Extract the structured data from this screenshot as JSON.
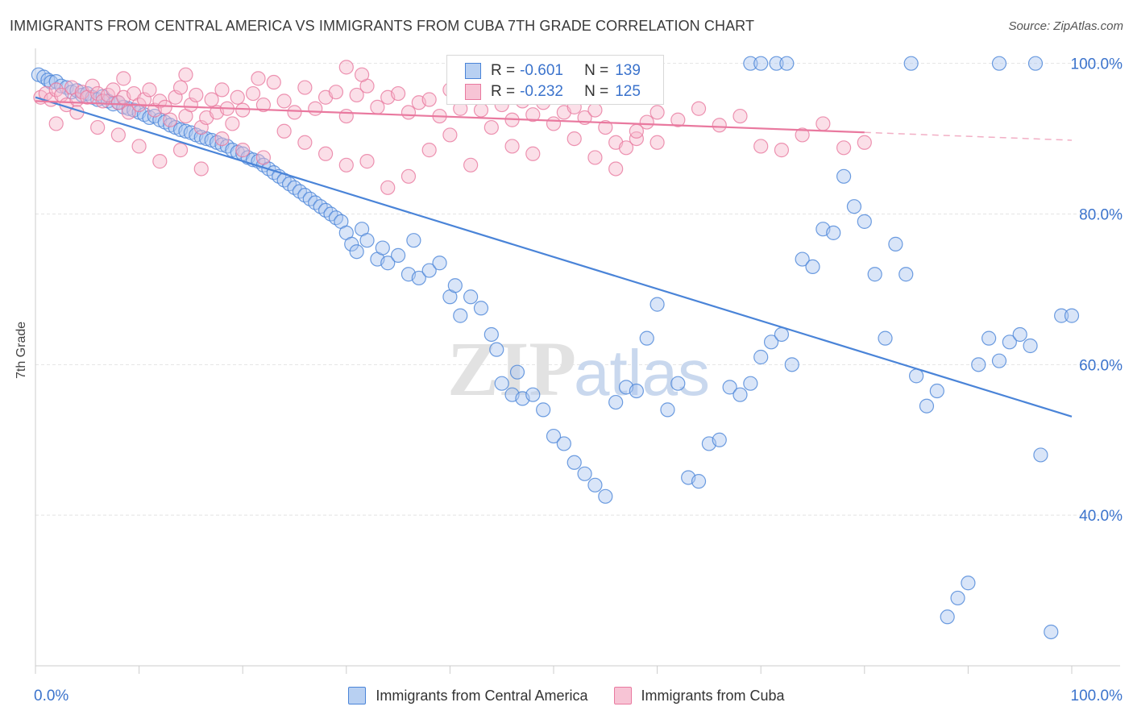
{
  "title": "IMMIGRANTS FROM CENTRAL AMERICA VS IMMIGRANTS FROM CUBA 7TH GRADE CORRELATION CHART",
  "source": "Source: ZipAtlas.com",
  "watermark": {
    "zip": "ZIP",
    "atlas": "atlas"
  },
  "legend_top": {
    "r_label": "R = ",
    "n_label": "N = ",
    "rows": [
      {
        "r": "-0.601",
        "n": "139"
      },
      {
        "r": "-0.232",
        "n": "125"
      }
    ]
  },
  "chart_data": {
    "type": "scatter",
    "title": "IMMIGRANTS FROM CENTRAL AMERICA VS IMMIGRANTS FROM CUBA 7TH GRADE CORRELATION CHART",
    "xlabel": "",
    "ylabel": "7th Grade",
    "xlim": [
      0,
      100
    ],
    "ylim": [
      20,
      102
    ],
    "x_tick_labels": [
      "0.0%",
      "100.0%"
    ],
    "y_ticks": [
      {
        "value": 100,
        "label": "100.0%"
      },
      {
        "value": 80,
        "label": "80.0%"
      },
      {
        "value": 60,
        "label": "60.0%"
      },
      {
        "value": 40,
        "label": "40.0%"
      }
    ],
    "legend": "bottom",
    "grid": true,
    "colors": {
      "central_america": "#4a84d8",
      "cuba": "#e9799f"
    },
    "series": [
      {
        "name": "Immigrants from Central America",
        "color": "#4a84d8",
        "trend": {
          "x": [
            0,
            100
          ],
          "y": [
            95.5,
            53.1
          ],
          "dashed_from": null
        },
        "points": [
          [
            0.3,
            98.5
          ],
          [
            0.8,
            98.2
          ],
          [
            1.2,
            97.8
          ],
          [
            1.5,
            97.5
          ],
          [
            2.0,
            97.6
          ],
          [
            2.5,
            97.0
          ],
          [
            3.0,
            96.8
          ],
          [
            3.5,
            96.2
          ],
          [
            4.0,
            96.4
          ],
          [
            4.5,
            95.8
          ],
          [
            5.0,
            96.0
          ],
          [
            5.5,
            95.5
          ],
          [
            6.0,
            95.2
          ],
          [
            6.5,
            95.6
          ],
          [
            7.0,
            95.0
          ],
          [
            7.5,
            94.6
          ],
          [
            8.0,
            94.8
          ],
          [
            8.5,
            94.2
          ],
          [
            9.0,
            94.0
          ],
          [
            9.5,
            93.8
          ],
          [
            10.0,
            93.5
          ],
          [
            10.5,
            93.2
          ],
          [
            11.0,
            92.8
          ],
          [
            11.5,
            93.0
          ],
          [
            12.0,
            92.5
          ],
          [
            12.5,
            92.2
          ],
          [
            13.0,
            91.8
          ],
          [
            13.5,
            91.5
          ],
          [
            14.0,
            91.2
          ],
          [
            14.5,
            91.0
          ],
          [
            15.0,
            90.8
          ],
          [
            15.5,
            90.5
          ],
          [
            16.0,
            90.2
          ],
          [
            16.5,
            90.0
          ],
          [
            17.0,
            89.8
          ],
          [
            17.5,
            89.5
          ],
          [
            18.0,
            89.2
          ],
          [
            18.5,
            89.0
          ],
          [
            19.0,
            88.5
          ],
          [
            19.5,
            88.2
          ],
          [
            20.0,
            88.0
          ],
          [
            20.5,
            87.5
          ],
          [
            21.0,
            87.2
          ],
          [
            21.5,
            87.0
          ],
          [
            22.0,
            86.5
          ],
          [
            22.5,
            86.0
          ],
          [
            23.0,
            85.5
          ],
          [
            23.5,
            85.0
          ],
          [
            24.0,
            84.5
          ],
          [
            24.5,
            84.0
          ],
          [
            25.0,
            83.5
          ],
          [
            25.5,
            83.0
          ],
          [
            26.0,
            82.5
          ],
          [
            26.5,
            82.0
          ],
          [
            27.0,
            81.5
          ],
          [
            27.5,
            81.0
          ],
          [
            28.0,
            80.5
          ],
          [
            28.5,
            80.0
          ],
          [
            29.0,
            79.5
          ],
          [
            29.5,
            79.0
          ],
          [
            30.0,
            77.5
          ],
          [
            30.5,
            76.0
          ],
          [
            31.0,
            75.0
          ],
          [
            31.5,
            78.0
          ],
          [
            32.0,
            76.5
          ],
          [
            33.0,
            74.0
          ],
          [
            33.5,
            75.5
          ],
          [
            34.0,
            73.5
          ],
          [
            35.0,
            74.5
          ],
          [
            36.0,
            72.0
          ],
          [
            36.5,
            76.5
          ],
          [
            37.0,
            71.5
          ],
          [
            38.0,
            72.5
          ],
          [
            39.0,
            73.5
          ],
          [
            40.0,
            69.0
          ],
          [
            40.5,
            70.5
          ],
          [
            41.0,
            66.5
          ],
          [
            42.0,
            69.0
          ],
          [
            43.0,
            67.5
          ],
          [
            44.0,
            64.0
          ],
          [
            44.5,
            62.0
          ],
          [
            45.0,
            57.5
          ],
          [
            46.0,
            56.0
          ],
          [
            46.5,
            59.0
          ],
          [
            47.0,
            55.5
          ],
          [
            48.0,
            56.0
          ],
          [
            49.0,
            54.0
          ],
          [
            50.0,
            50.5
          ],
          [
            51.0,
            49.5
          ],
          [
            52.0,
            47.0
          ],
          [
            53.0,
            45.5
          ],
          [
            54.0,
            44.0
          ],
          [
            55.0,
            42.5
          ],
          [
            56.0,
            55.0
          ],
          [
            57.0,
            57.0
          ],
          [
            58.0,
            56.5
          ],
          [
            59.0,
            63.5
          ],
          [
            60.0,
            68.0
          ],
          [
            61.0,
            54.0
          ],
          [
            62.0,
            57.5
          ],
          [
            63.0,
            45.0
          ],
          [
            64.0,
            44.5
          ],
          [
            65.0,
            49.5
          ],
          [
            66.0,
            50.0
          ],
          [
            67.0,
            57.0
          ],
          [
            68.0,
            56.0
          ],
          [
            69.0,
            57.5
          ],
          [
            70.0,
            61.0
          ],
          [
            71.0,
            63.0
          ],
          [
            72.0,
            64.0
          ],
          [
            73.0,
            60.0
          ],
          [
            74.0,
            74.0
          ],
          [
            75.0,
            73.0
          ],
          [
            76.0,
            78.0
          ],
          [
            77.0,
            77.5
          ],
          [
            78.0,
            85.0
          ],
          [
            79.0,
            81.0
          ],
          [
            80.0,
            79.0
          ],
          [
            81.0,
            72.0
          ],
          [
            82.0,
            63.5
          ],
          [
            83.0,
            76.0
          ],
          [
            84.0,
            72.0
          ],
          [
            85.0,
            58.5
          ],
          [
            86.0,
            54.5
          ],
          [
            87.0,
            56.5
          ],
          [
            88.0,
            26.5
          ],
          [
            89.0,
            29.0
          ],
          [
            90.0,
            31.0
          ],
          [
            91.0,
            60.0
          ],
          [
            92.0,
            63.5
          ],
          [
            93.0,
            60.5
          ],
          [
            94.0,
            63.0
          ],
          [
            95.0,
            64.0
          ],
          [
            96.0,
            62.5
          ],
          [
            97.0,
            48.0
          ],
          [
            98.0,
            24.5
          ],
          [
            99.0,
            66.5
          ],
          [
            100.0,
            66.5
          ],
          [
            55.0,
            100.0
          ],
          [
            56.5,
            100.0
          ],
          [
            69.0,
            100.0
          ],
          [
            70.0,
            100.0
          ],
          [
            71.5,
            100.0
          ],
          [
            72.5,
            100.0
          ],
          [
            84.5,
            100.0
          ],
          [
            93.0,
            100.0
          ],
          [
            96.5,
            100.0
          ],
          [
            50.0,
            100.0
          ],
          [
            48.0,
            100.0
          ]
        ]
      },
      {
        "name": "Immigrants from Cuba",
        "color": "#e9799f",
        "trend": {
          "x": [
            0,
            100
          ],
          "y": [
            95.0,
            89.8
          ],
          "dashed_from": 80
        },
        "points": [
          [
            0.5,
            95.5
          ],
          [
            1.0,
            96.0
          ],
          [
            1.5,
            95.2
          ],
          [
            2.0,
            96.5
          ],
          [
            2.5,
            95.8
          ],
          [
            3.0,
            94.5
          ],
          [
            3.5,
            96.8
          ],
          [
            4.0,
            95.2
          ],
          [
            4.5,
            96.2
          ],
          [
            5.0,
            95.5
          ],
          [
            5.5,
            97.0
          ],
          [
            6.0,
            96.0
          ],
          [
            6.5,
            95.0
          ],
          [
            7.0,
            95.8
          ],
          [
            7.5,
            96.5
          ],
          [
            8.0,
            94.8
          ],
          [
            8.5,
            95.5
          ],
          [
            9.0,
            93.5
          ],
          [
            9.5,
            96.0
          ],
          [
            10.0,
            94.5
          ],
          [
            10.5,
            95.2
          ],
          [
            11.0,
            96.5
          ],
          [
            11.5,
            93.8
          ],
          [
            12.0,
            95.0
          ],
          [
            12.5,
            94.2
          ],
          [
            13.0,
            92.5
          ],
          [
            13.5,
            95.5
          ],
          [
            14.0,
            96.8
          ],
          [
            14.5,
            93.0
          ],
          [
            15.0,
            94.5
          ],
          [
            15.5,
            95.8
          ],
          [
            16.0,
            91.5
          ],
          [
            16.5,
            92.8
          ],
          [
            17.0,
            95.2
          ],
          [
            17.5,
            93.5
          ],
          [
            18.0,
            96.5
          ],
          [
            18.5,
            94.0
          ],
          [
            19.0,
            92.0
          ],
          [
            19.5,
            95.5
          ],
          [
            20.0,
            93.8
          ],
          [
            21.0,
            96.0
          ],
          [
            22.0,
            94.5
          ],
          [
            23.0,
            97.5
          ],
          [
            24.0,
            95.0
          ],
          [
            25.0,
            93.5
          ],
          [
            26.0,
            96.8
          ],
          [
            27.0,
            94.0
          ],
          [
            28.0,
            95.5
          ],
          [
            29.0,
            96.2
          ],
          [
            30.0,
            93.0
          ],
          [
            31.0,
            95.8
          ],
          [
            32.0,
            97.0
          ],
          [
            33.0,
            94.2
          ],
          [
            34.0,
            95.5
          ],
          [
            35.0,
            96.0
          ],
          [
            36.0,
            93.5
          ],
          [
            37.0,
            94.8
          ],
          [
            38.0,
            95.2
          ],
          [
            39.0,
            93.0
          ],
          [
            40.0,
            96.5
          ],
          [
            41.0,
            94.0
          ],
          [
            42.0,
            95.5
          ],
          [
            43.0,
            93.8
          ],
          [
            44.0,
            96.2
          ],
          [
            45.0,
            94.5
          ],
          [
            46.0,
            92.5
          ],
          [
            47.0,
            95.0
          ],
          [
            48.0,
            93.2
          ],
          [
            49.0,
            94.8
          ],
          [
            50.0,
            95.5
          ],
          [
            51.0,
            93.5
          ],
          [
            52.0,
            94.2
          ],
          [
            53.0,
            92.8
          ],
          [
            54.0,
            93.8
          ],
          [
            55.0,
            91.5
          ],
          [
            56.0,
            89.5
          ],
          [
            57.0,
            88.8
          ],
          [
            58.0,
            90.0
          ],
          [
            59.0,
            92.2
          ],
          [
            60.0,
            93.5
          ],
          [
            2.0,
            92.0
          ],
          [
            4.0,
            93.5
          ],
          [
            6.0,
            91.5
          ],
          [
            8.0,
            90.5
          ],
          [
            10.0,
            89.0
          ],
          [
            12.0,
            87.0
          ],
          [
            14.0,
            88.5
          ],
          [
            16.0,
            86.0
          ],
          [
            18.0,
            90.0
          ],
          [
            20.0,
            88.5
          ],
          [
            22.0,
            87.5
          ],
          [
            24.0,
            91.0
          ],
          [
            26.0,
            89.5
          ],
          [
            28.0,
            88.0
          ],
          [
            30.0,
            86.5
          ],
          [
            32.0,
            87.0
          ],
          [
            34.0,
            83.5
          ],
          [
            36.0,
            85.0
          ],
          [
            38.0,
            88.5
          ],
          [
            40.0,
            90.5
          ],
          [
            42.0,
            86.5
          ],
          [
            44.0,
            91.5
          ],
          [
            46.0,
            89.0
          ],
          [
            48.0,
            88.0
          ],
          [
            50.0,
            92.0
          ],
          [
            52.0,
            90.0
          ],
          [
            54.0,
            87.5
          ],
          [
            56.0,
            86.0
          ],
          [
            58.0,
            91.0
          ],
          [
            60.0,
            89.5
          ],
          [
            62.0,
            92.5
          ],
          [
            64.0,
            94.0
          ],
          [
            66.0,
            91.8
          ],
          [
            68.0,
            93.0
          ],
          [
            70.0,
            89.0
          ],
          [
            72.0,
            88.5
          ],
          [
            74.0,
            90.5
          ],
          [
            76.0,
            92.0
          ],
          [
            78.0,
            88.8
          ],
          [
            80.0,
            89.5
          ],
          [
            8.5,
            98.0
          ],
          [
            14.5,
            98.5
          ],
          [
            21.5,
            98.0
          ],
          [
            30.0,
            99.5
          ],
          [
            31.5,
            98.5
          ]
        ]
      }
    ]
  },
  "legend_bottom": [
    {
      "label": "Immigrants from Central America"
    },
    {
      "label": "Immigrants from Cuba"
    }
  ]
}
